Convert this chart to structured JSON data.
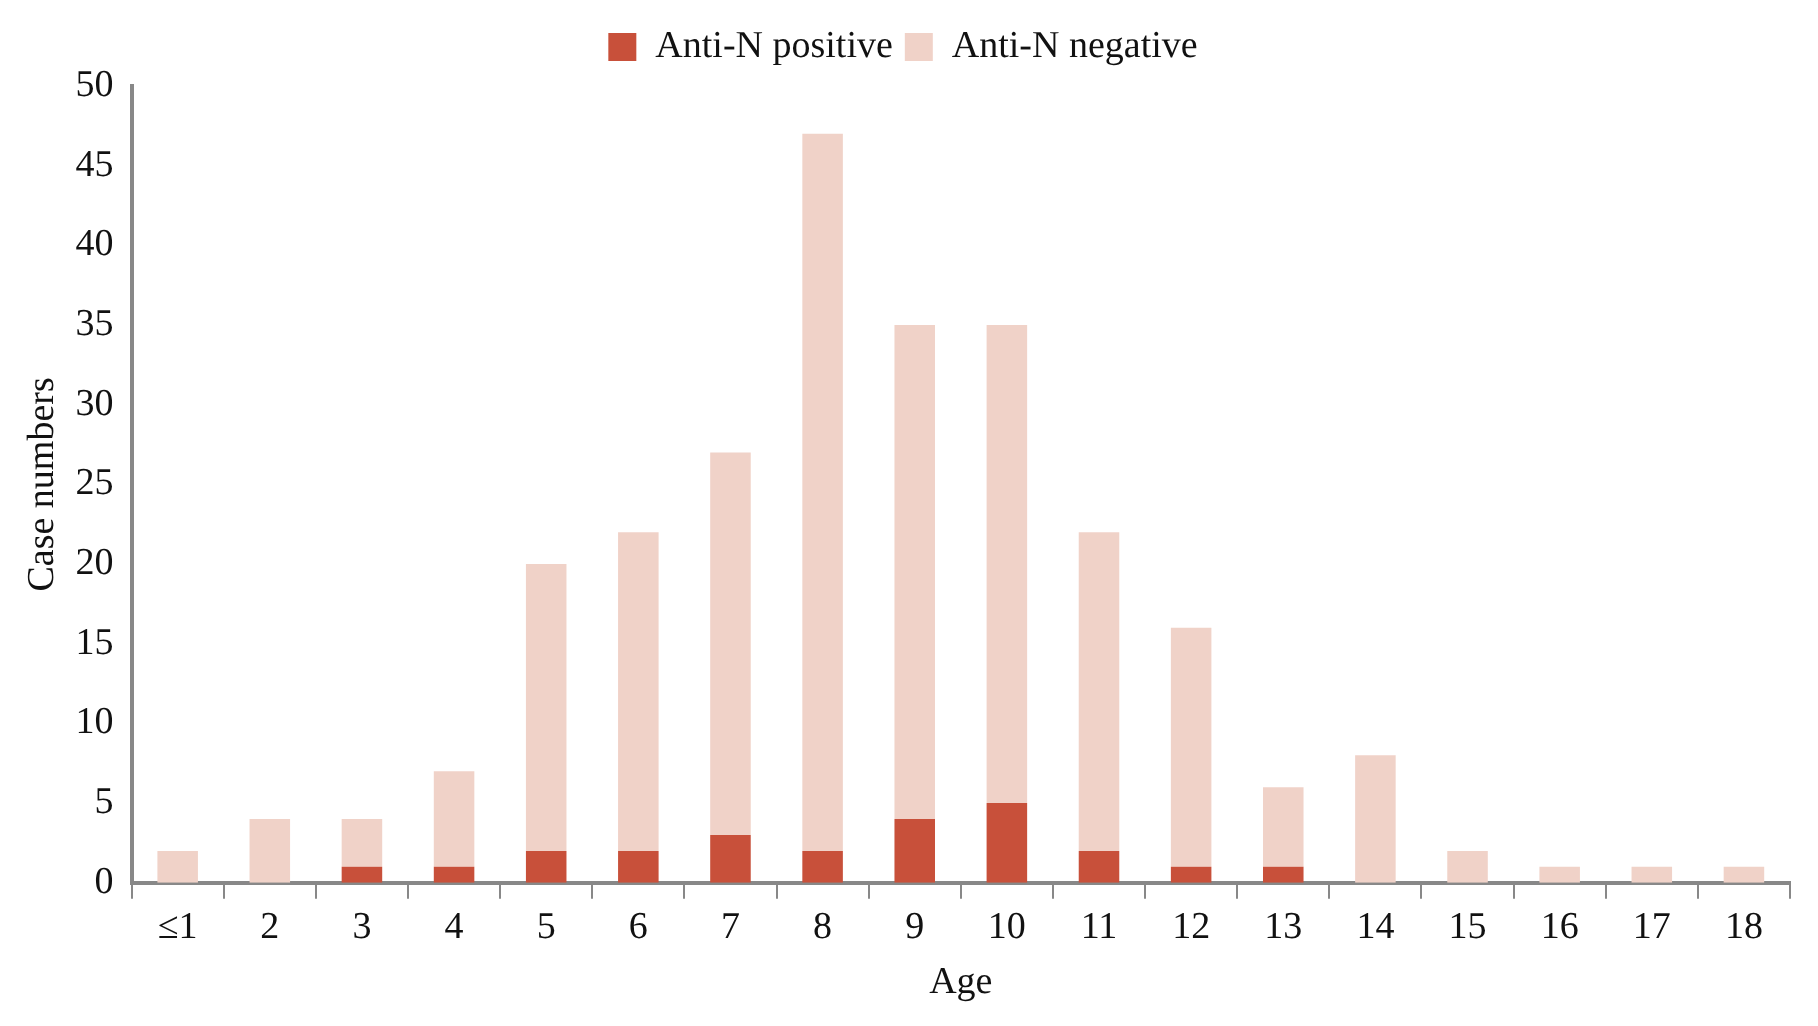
{
  "chart_data": {
    "type": "bar",
    "stacked": true,
    "xlabel": "Age",
    "ylabel": "Case numbers",
    "legend": "top",
    "categories": [
      "≤1",
      "2",
      "3",
      "4",
      "5",
      "6",
      "7",
      "8",
      "9",
      "10",
      "11",
      "12",
      "13",
      "14",
      "15",
      "16",
      "17",
      "18"
    ],
    "series": [
      {
        "name": "Anti-N positive",
        "color": "#c8503a",
        "values": [
          0,
          0,
          1,
          1,
          2,
          2,
          3,
          2,
          4,
          5,
          2,
          1,
          1,
          0,
          0,
          0,
          0,
          0
        ]
      },
      {
        "name": "Anti-N negative",
        "color": "#f0d2c8",
        "values": [
          2,
          4,
          3,
          6,
          18,
          20,
          24,
          45,
          31,
          30,
          20,
          15,
          5,
          8,
          2,
          1,
          1,
          1
        ]
      }
    ],
    "ylim": [
      0,
      50
    ],
    "yticks": [
      0,
      5,
      10,
      15,
      20,
      25,
      30,
      35,
      40,
      45,
      50
    ]
  }
}
